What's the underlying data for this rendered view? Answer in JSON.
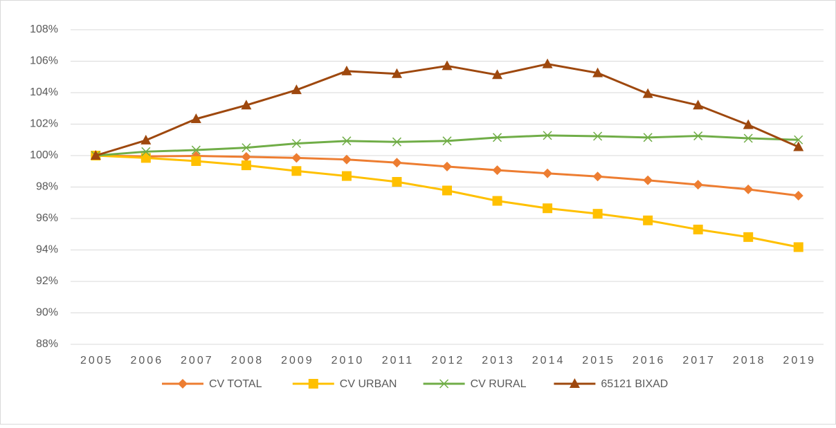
{
  "chart_data": {
    "type": "line",
    "categories": [
      "2005",
      "2006",
      "2007",
      "2008",
      "2009",
      "2010",
      "2011",
      "2012",
      "2013",
      "2014",
      "2015",
      "2016",
      "2017",
      "2018",
      "2019"
    ],
    "ylim": [
      88,
      108
    ],
    "yticks": [
      {
        "value": 88,
        "label": "88%"
      },
      {
        "value": 90,
        "label": "90%"
      },
      {
        "value": 92,
        "label": "92%"
      },
      {
        "value": 94,
        "label": "94%"
      },
      {
        "value": 96,
        "label": "96%"
      },
      {
        "value": 98,
        "label": "98%"
      },
      {
        "value": 100,
        "label": "100%"
      },
      {
        "value": 102,
        "label": "102%"
      },
      {
        "value": 104,
        "label": "104%"
      },
      {
        "value": 106,
        "label": "106%"
      },
      {
        "value": 108,
        "label": "108%"
      }
    ],
    "grid": true,
    "legend": "bottom",
    "series": [
      {
        "name": "CV TOTAL",
        "color": "#ED7D31",
        "marker": "diamond",
        "values": [
          100,
          99.95,
          99.98,
          99.92,
          99.85,
          99.75,
          99.55,
          99.3,
          99.07,
          98.87,
          98.67,
          98.43,
          98.15,
          97.85,
          97.45
        ]
      },
      {
        "name": "CV URBAN",
        "color": "#FFC000",
        "marker": "square",
        "values": [
          100,
          99.85,
          99.65,
          99.38,
          99.02,
          98.7,
          98.33,
          97.78,
          97.12,
          96.65,
          96.3,
          95.88,
          95.3,
          94.82,
          94.18
        ]
      },
      {
        "name": "CV RURAL",
        "color": "#70AD47",
        "marker": "x",
        "values": [
          100,
          100.25,
          100.35,
          100.5,
          100.77,
          100.93,
          100.87,
          100.93,
          101.15,
          101.28,
          101.23,
          101.15,
          101.25,
          101.1,
          101.0
        ]
      },
      {
        "name": "65121 BIXAD",
        "color": "#9E480E",
        "marker": "triangle",
        "values": [
          100,
          100.97,
          102.33,
          103.2,
          104.17,
          105.37,
          105.2,
          105.7,
          105.13,
          105.82,
          105.25,
          103.93,
          103.2,
          101.95,
          100.55
        ]
      }
    ]
  }
}
